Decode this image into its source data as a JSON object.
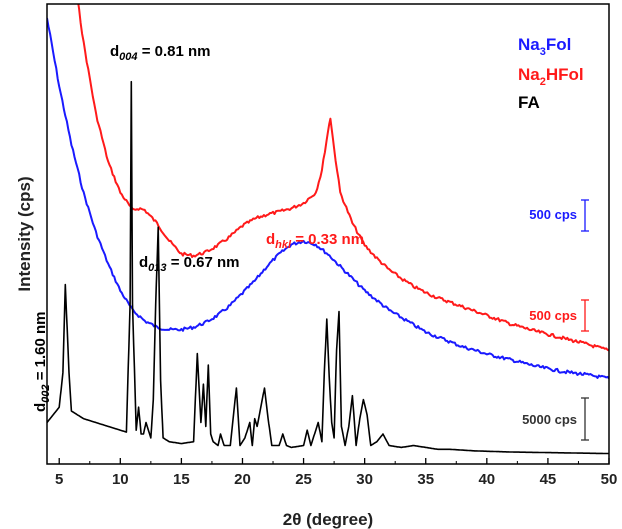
{
  "chart_data": {
    "type": "line",
    "xlabel": "2θ (degree)",
    "ylabel": "Intensity (cps)",
    "xlim": [
      4,
      50
    ],
    "x_ticks": [
      5,
      10,
      15,
      20,
      25,
      30,
      35,
      40,
      45,
      50
    ],
    "y_ticks_visible": false,
    "grid": false,
    "legend_position": "top-right",
    "colors": {
      "Na3Fol": "#1a1aff",
      "Na2HFol": "#ff1a1a",
      "FA": "#000000"
    },
    "legend": [
      {
        "series": "Na3Fol",
        "main": "Na",
        "sub": "3",
        "rest": "Fol",
        "color": "#1a1aff"
      },
      {
        "series": "Na2HFol",
        "main": "Na",
        "sub": "2",
        "rest": "HFol",
        "color": "#ff1a1a"
      },
      {
        "series": "FA",
        "main": "FA",
        "sub": "",
        "rest": "",
        "color": "#000000"
      }
    ],
    "scale_bars": [
      {
        "series": "Na3Fol",
        "label": "500 cps",
        "color": "#1a1aff"
      },
      {
        "series": "Na2HFol",
        "label": "500 cps",
        "color": "#ff1a1a"
      },
      {
        "series": "FA",
        "label": "5000 cps",
        "color": "#333333"
      }
    ],
    "annotations": [
      {
        "id": "d004",
        "base": "d",
        "sub": "004",
        "value": " = 0.81 nm",
        "color": "#000000",
        "x": 10.9
      },
      {
        "id": "d013",
        "base": "d",
        "sub": "013",
        "value": " = 0.67 nm",
        "color": "#000000",
        "x": 13.1
      },
      {
        "id": "d002",
        "base": "d",
        "sub": "002",
        "value": " = 1.60 nm",
        "color": "#000000",
        "x": 5.5
      },
      {
        "id": "dhkl",
        "base": "d",
        "sub": "hkl",
        "value": " = 0.33 nm",
        "color": "#ff1a1a",
        "x": 27.1
      }
    ],
    "series": [
      {
        "name": "Na3Fol",
        "x": [
          4,
          5,
          6,
          7,
          8,
          9,
          10,
          11,
          12,
          13,
          14,
          15,
          16,
          17,
          18,
          19,
          20,
          21,
          22,
          23,
          24,
          25,
          26,
          27,
          28,
          29,
          30,
          31,
          32,
          33,
          34,
          35,
          36,
          37,
          38,
          39,
          40,
          42,
          44,
          46,
          48,
          50
        ],
        "y": [
          1000,
          860,
          740,
          640,
          560,
          495,
          440,
          400,
          378,
          365,
          360,
          360,
          365,
          375,
          390,
          410,
          435,
          460,
          490,
          515,
          535,
          542,
          535,
          515,
          490,
          465,
          440,
          420,
          400,
          385,
          370,
          355,
          345,
          335,
          325,
          318,
          310,
          298,
          285,
          275,
          268,
          260
        ]
      },
      {
        "name": "Na2HFol",
        "x": [
          4,
          5,
          6,
          7,
          8,
          9,
          10,
          11,
          11.5,
          12,
          13,
          14,
          15,
          16,
          17,
          18,
          19,
          20,
          21,
          22,
          23,
          24,
          25,
          26,
          26.5,
          27,
          27.2,
          27.5,
          28,
          29,
          30,
          31,
          32,
          33,
          34,
          35,
          36,
          38,
          40,
          42,
          44,
          46,
          48,
          50
        ],
        "y": [
          770,
          640,
          520,
          420,
          340,
          285,
          250,
          230,
          232,
          230,
          215,
          195,
          180,
          178,
          182,
          190,
          200,
          212,
          220,
          225,
          228,
          232,
          238,
          250,
          275,
          320,
          335,
          300,
          250,
          215,
          190,
          175,
          162,
          152,
          143,
          136,
          130,
          120,
          110,
          100,
          92,
          85,
          78,
          70
        ]
      },
      {
        "name": "FA",
        "x": [
          4,
          5,
          5.3,
          5.5,
          5.8,
          6,
          7,
          8,
          9,
          10,
          10.5,
          10.8,
          10.9,
          11.0,
          11.3,
          11.5,
          11.7,
          11.9,
          12.1,
          12.5,
          12.7,
          12.9,
          13.1,
          13.3,
          13.5,
          14,
          15,
          16,
          16.3,
          16.6,
          16.8,
          17.0,
          17.2,
          17.4,
          17.6,
          18,
          18.2,
          18.5,
          19,
          19.3,
          19.5,
          19.8,
          20.2,
          20.6,
          20.8,
          21.0,
          21.2,
          21.5,
          21.8,
          22.1,
          22.4,
          23,
          23.3,
          23.6,
          24,
          25,
          25.3,
          25.6,
          25.9,
          26.2,
          26.5,
          26.7,
          26.9,
          27.1,
          27.3,
          27.5,
          27.7,
          27.9,
          28.1,
          28.4,
          28.7,
          29.0,
          29.3,
          29.6,
          29.9,
          30.2,
          30.5,
          31,
          31.5,
          32,
          33,
          34,
          35,
          36,
          37,
          38,
          39,
          40,
          41,
          42,
          44,
          46,
          48,
          50
        ],
        "y": [
          9000,
          13000,
          22000,
          45000,
          22000,
          12000,
          10000,
          9000,
          8000,
          7000,
          6500,
          40000,
          98000,
          40000,
          7000,
          13000,
          6000,
          6000,
          9000,
          5000,
          15000,
          40000,
          60000,
          20000,
          5000,
          4000,
          3500,
          4000,
          27000,
          9000,
          19000,
          8000,
          24000,
          6000,
          4000,
          3000,
          6000,
          3000,
          3000,
          12000,
          18000,
          3000,
          5000,
          9000,
          3000,
          10000,
          8000,
          13000,
          18000,
          10000,
          3000,
          3000,
          6000,
          3000,
          2500,
          3000,
          7000,
          3000,
          6000,
          9000,
          4000,
          22000,
          36000,
          21000,
          9000,
          5000,
          28000,
          38000,
          8000,
          3000,
          8000,
          16000,
          3000,
          10000,
          15000,
          11000,
          3000,
          4000,
          6000,
          3000,
          2500,
          3000,
          2500,
          2000,
          2000,
          1800,
          1600,
          1500,
          1400,
          1300,
          1200,
          1100,
          1000,
          900
        ]
      }
    ]
  }
}
